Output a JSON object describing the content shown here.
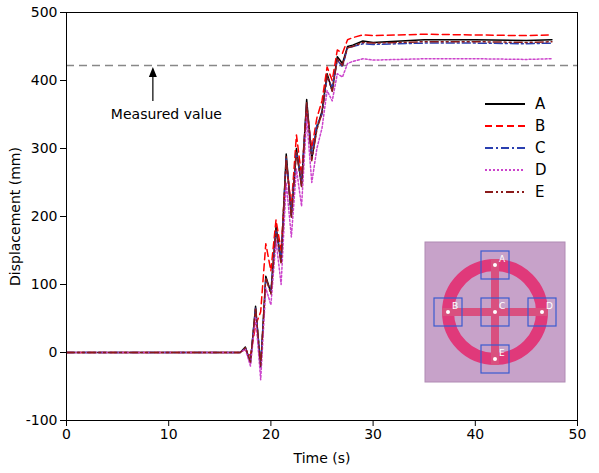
{
  "chart_data": {
    "type": "line",
    "x_label": "Time (s)",
    "y_label": "Displacement (mm)",
    "xlim": [
      0,
      50
    ],
    "xticks": [
      0,
      10,
      20,
      30,
      40,
      50
    ],
    "ylim": [
      -100,
      500
    ],
    "yticks": [
      -100,
      0,
      100,
      200,
      300,
      400,
      500
    ],
    "grid": false,
    "legend": "upper right",
    "x": [
      0,
      5,
      10,
      15,
      17,
      17.5,
      18,
      18.5,
      19,
      19.5,
      20,
      20.5,
      21,
      21.5,
      22,
      22.5,
      23,
      23.5,
      24,
      24.5,
      25,
      25.5,
      26,
      26.5,
      27,
      27.5,
      28,
      29,
      30,
      35,
      40,
      45,
      47.5
    ],
    "series": [
      {
        "name": "A",
        "color": "#000000",
        "line_style": "solid",
        "values": [
          0,
          0,
          0,
          0,
          0,
          8,
          -15,
          68,
          -22,
          112,
          88,
          185,
          135,
          292,
          200,
          300,
          245,
          372,
          285,
          330,
          355,
          410,
          385,
          435,
          425,
          450,
          452,
          458,
          456,
          460,
          460,
          459,
          460
        ]
      },
      {
        "name": "B",
        "color": "#ff0000",
        "line_style": "dashed",
        "values": [
          0,
          0,
          0,
          0,
          0,
          5,
          -5,
          40,
          60,
          160,
          120,
          195,
          150,
          280,
          215,
          320,
          260,
          360,
          300,
          345,
          370,
          420,
          400,
          445,
          440,
          460,
          463,
          467,
          466,
          468,
          467,
          466,
          467
        ]
      },
      {
        "name": "C",
        "color": "#2a3fb0",
        "line_style": "dashdot",
        "values": [
          0,
          0,
          0,
          0,
          0,
          6,
          -12,
          65,
          -18,
          108,
          90,
          180,
          135,
          285,
          205,
          295,
          250,
          365,
          290,
          335,
          350,
          405,
          390,
          430,
          420,
          448,
          450,
          454,
          453,
          455,
          455,
          454,
          455
        ]
      },
      {
        "name": "D",
        "color": "#cc44cc",
        "line_style": "dotted",
        "values": [
          0,
          0,
          0,
          0,
          0,
          5,
          -20,
          55,
          -40,
          95,
          70,
          165,
          100,
          250,
          170,
          270,
          215,
          345,
          250,
          300,
          330,
          385,
          370,
          410,
          405,
          425,
          428,
          432,
          430,
          432,
          432,
          431,
          432
        ]
      },
      {
        "name": "E",
        "color": "#8b1a1a",
        "line_style": "dashdotdot",
        "values": [
          0,
          0,
          0,
          0,
          0,
          7,
          -14,
          66,
          -20,
          110,
          86,
          180,
          130,
          288,
          198,
          296,
          244,
          368,
          282,
          328,
          352,
          408,
          384,
          432,
          422,
          448,
          450,
          456,
          455,
          457,
          457,
          456,
          457
        ]
      }
    ],
    "reference_line": {
      "value": 422,
      "label": "Measured value"
    }
  }
}
